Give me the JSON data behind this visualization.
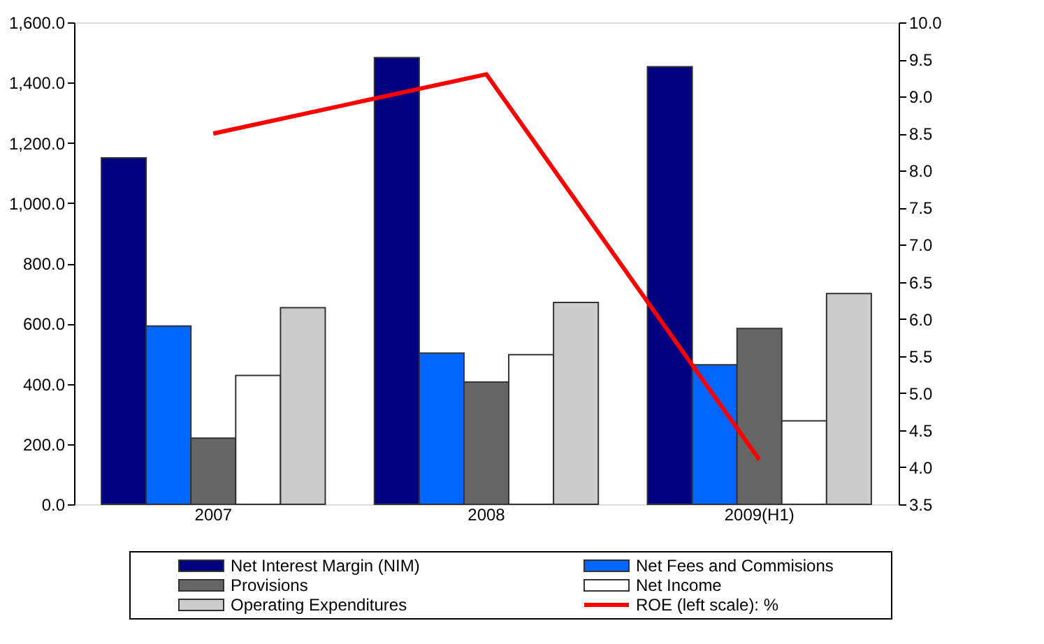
{
  "chart_data": {
    "type": "bar",
    "categories": [
      "2007",
      "2008",
      "2009(H1)"
    ],
    "series": [
      {
        "name": "Net Interest Margin (NIM)",
        "color": "#000080",
        "values": [
          1150,
          1483,
          1453
        ]
      },
      {
        "name": "Net Fees and Commisions",
        "color": "#0066ff",
        "values": [
          592,
          502,
          463
        ]
      },
      {
        "name": "Provisions",
        "color": "#666666",
        "values": [
          220,
          406,
          584
        ]
      },
      {
        "name": "Net Income",
        "color": "#ffffff",
        "values": [
          428,
          497,
          277
        ]
      },
      {
        "name": "Operating Expenditures",
        "color": "#cccccc",
        "values": [
          653,
          670,
          700
        ]
      },
      {
        "name": "ROE (left scale): %",
        "color": "#ff0000",
        "type": "line",
        "axis": "y2",
        "values": [
          8.5,
          9.3,
          4.1
        ]
      }
    ],
    "ylim": [
      0,
      1600
    ],
    "yticks": [
      {
        "value": 0,
        "label": "0.0"
      },
      {
        "value": 200,
        "label": "200.0"
      },
      {
        "value": 400,
        "label": "400.0"
      },
      {
        "value": 600,
        "label": "600.0"
      },
      {
        "value": 800,
        "label": "800.0"
      },
      {
        "value": 1000,
        "label": "1,000.0"
      },
      {
        "value": 1200,
        "label": "1,200.0"
      },
      {
        "value": 1400,
        "label": "1,400.0"
      },
      {
        "value": 1600,
        "label": "1,600.0"
      }
    ],
    "y2lim": [
      3.5,
      10
    ],
    "y2ticks": [
      {
        "value": 3.5,
        "label": "3.5"
      },
      {
        "value": 4,
        "label": "4.0"
      },
      {
        "value": 4.5,
        "label": "4.5"
      },
      {
        "value": 5,
        "label": "5.0"
      },
      {
        "value": 5.5,
        "label": "5.5"
      },
      {
        "value": 6,
        "label": "6.0"
      },
      {
        "value": 6.5,
        "label": "6.5"
      },
      {
        "value": 7,
        "label": "7.0"
      },
      {
        "value": 7.5,
        "label": "7.5"
      },
      {
        "value": 8,
        "label": "8.0"
      },
      {
        "value": 8.5,
        "label": "8.5"
      },
      {
        "value": 9,
        "label": "9.0"
      },
      {
        "value": 9.5,
        "label": "9.5"
      },
      {
        "value": 10,
        "label": "10.0"
      }
    ],
    "grid": false,
    "legend": "bottom"
  }
}
